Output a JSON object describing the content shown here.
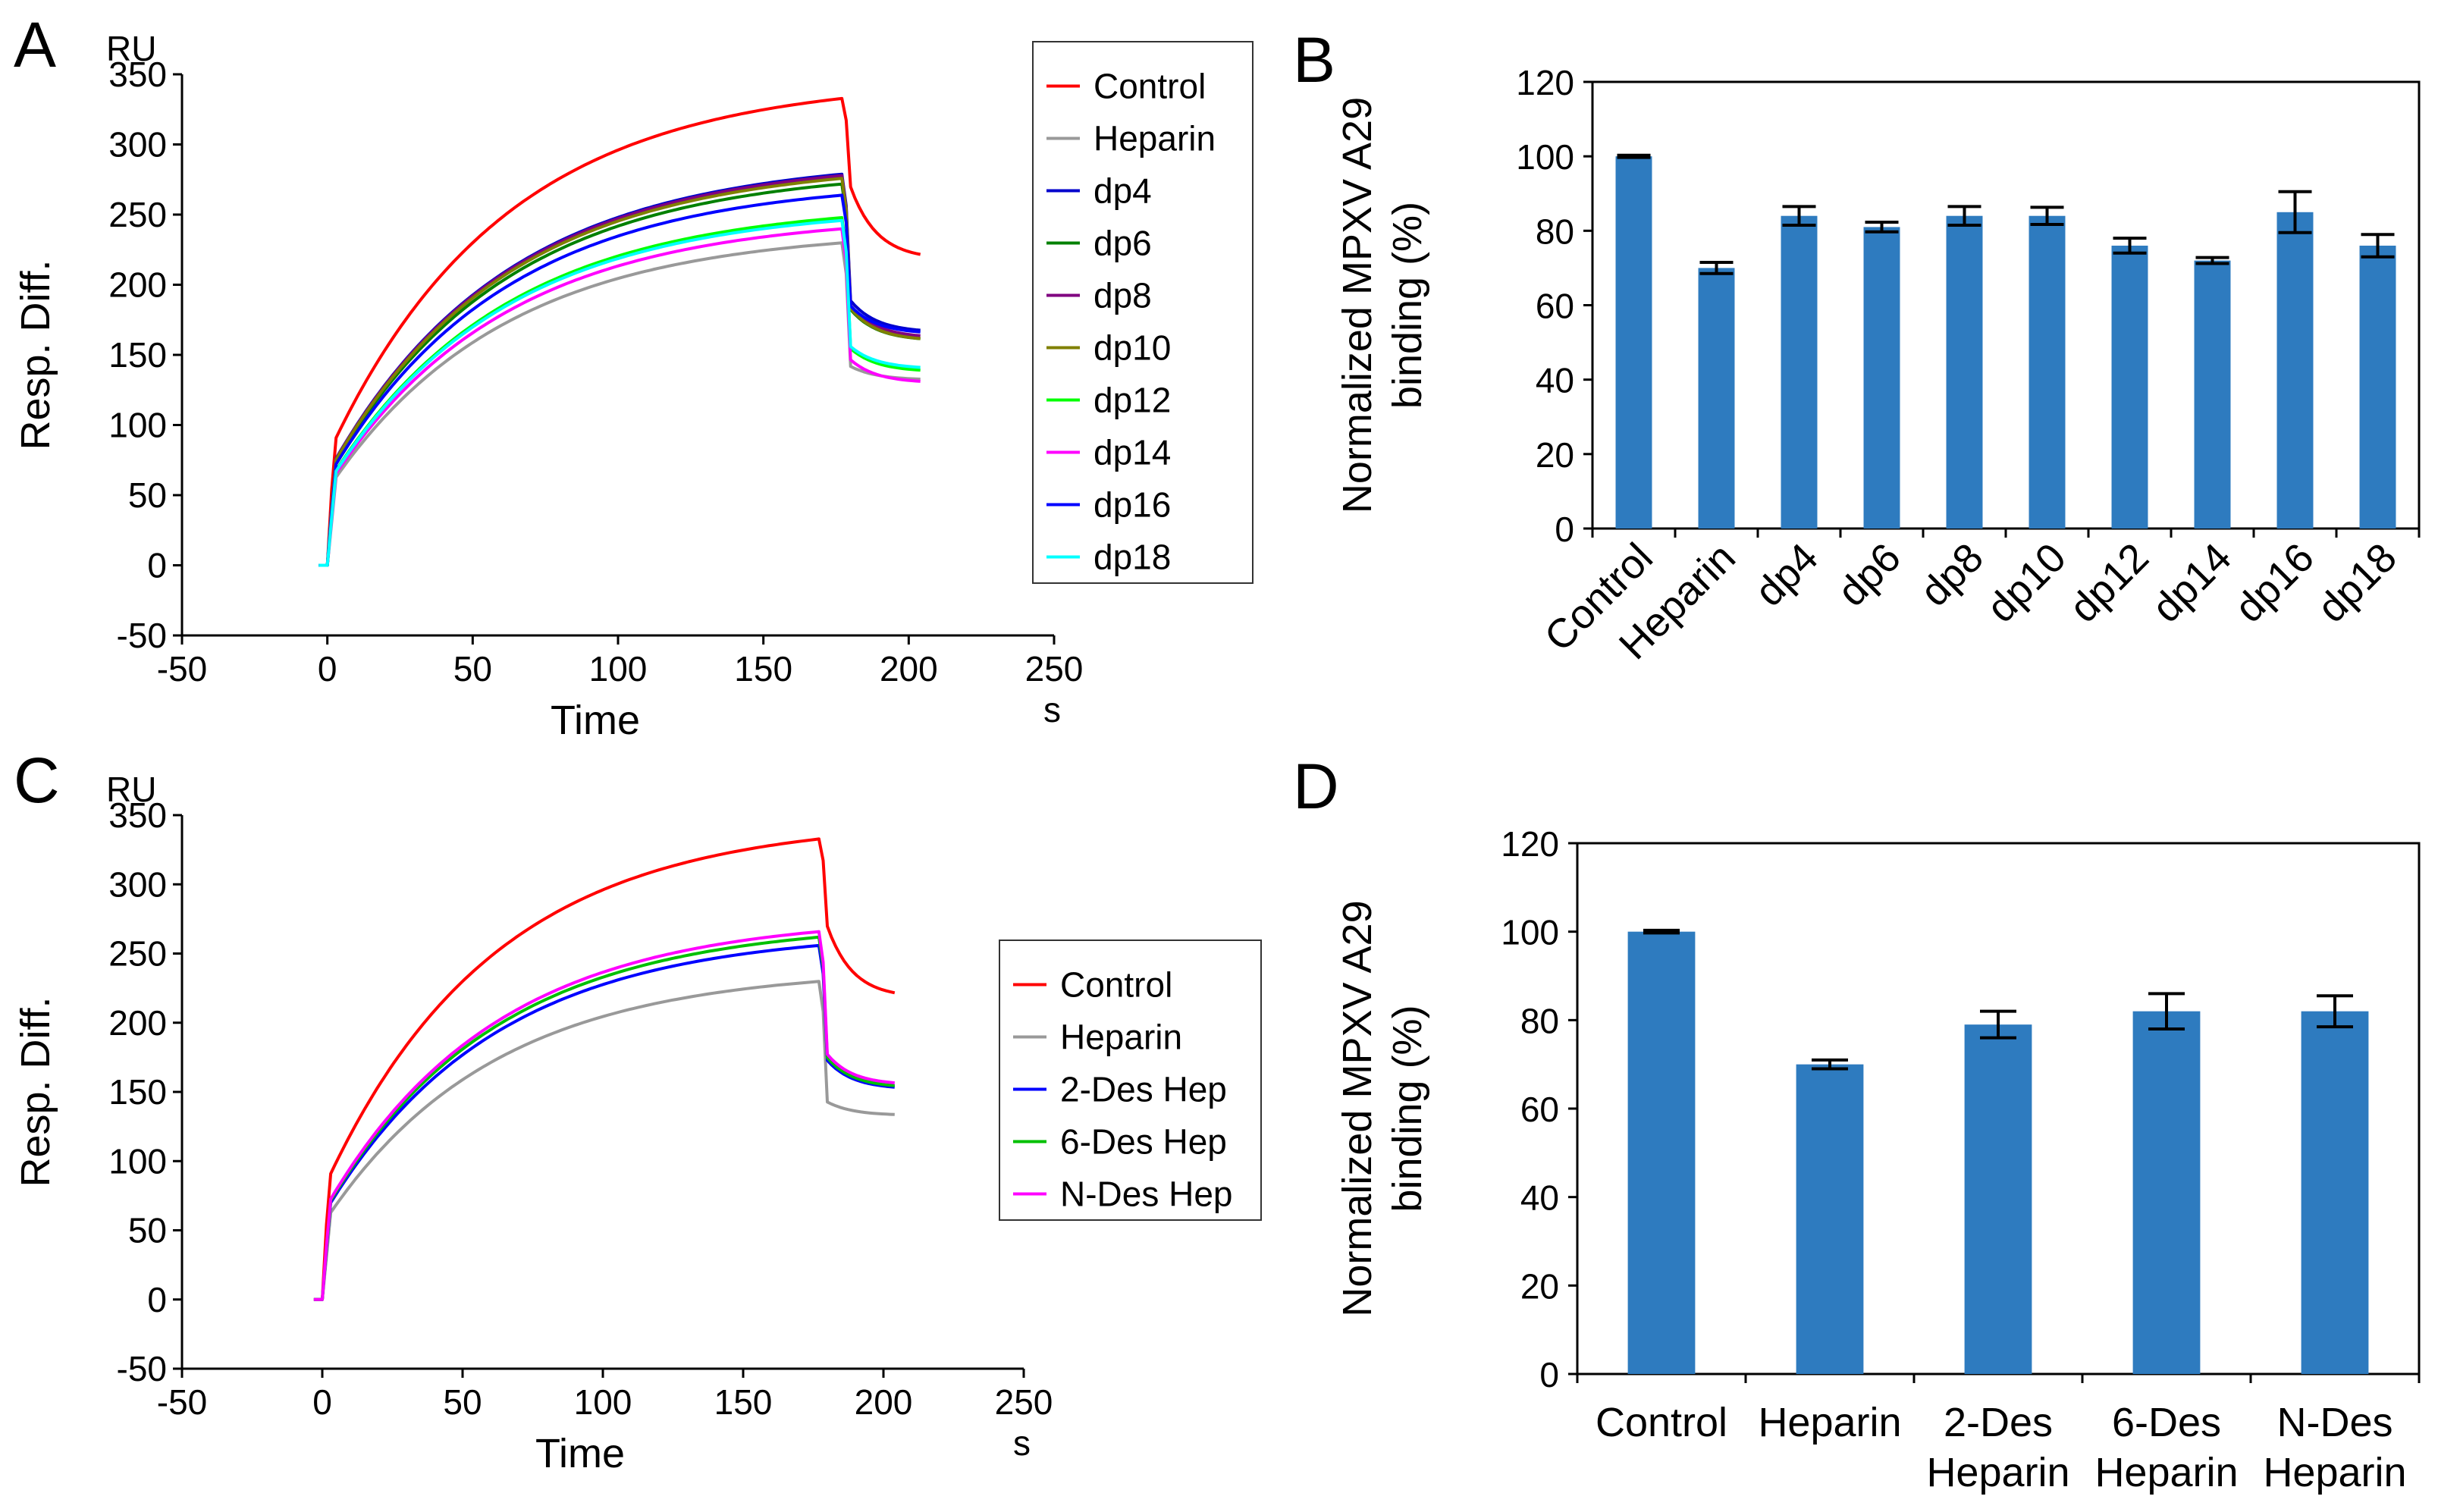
{
  "figure": {
    "panels": [
      "A",
      "B",
      "C",
      "D"
    ]
  },
  "chart_data": [
    {
      "panel": "A",
      "type": "line",
      "ylabel": "Resp. Diff.",
      "yunit": "RU",
      "xlabel": "Time",
      "xunit": "s",
      "xlim": [
        -50,
        250
      ],
      "ylim": [
        -50,
        350
      ],
      "xticks": [
        "-50",
        "0",
        "50",
        "100",
        "150",
        "200",
        "250"
      ],
      "yticks": [
        "-50",
        "0",
        "50",
        "100",
        "150",
        "200",
        "250",
        "300",
        "350"
      ],
      "series": [
        {
          "name": "Control",
          "color": "#ff0000",
          "plateau": 333,
          "end": 218,
          "drop": 0.55
        },
        {
          "name": "Heparin",
          "color": "#999999",
          "plateau": 230,
          "end": 132,
          "drop": 0.9
        },
        {
          "name": "dp4",
          "color": "#0000cc",
          "plateau": 279,
          "end": 166,
          "drop": 0.8
        },
        {
          "name": "dp6",
          "color": "#008000",
          "plateau": 272,
          "end": 160,
          "drop": 0.8
        },
        {
          "name": "dp8",
          "color": "#800080",
          "plateau": 278,
          "end": 162,
          "drop": 0.8
        },
        {
          "name": "dp10",
          "color": "#808000",
          "plateau": 276,
          "end": 160,
          "drop": 0.8
        },
        {
          "name": "dp12",
          "color": "#00ff00",
          "plateau": 248,
          "end": 138,
          "drop": 0.85
        },
        {
          "name": "dp14",
          "color": "#ff00ff",
          "plateau": 240,
          "end": 130,
          "drop": 0.85
        },
        {
          "name": "dp16",
          "color": "#0000ff",
          "plateau": 264,
          "end": 165,
          "drop": 0.8
        },
        {
          "name": "dp18",
          "color": "#00ffff",
          "plateau": 246,
          "end": 140,
          "drop": 0.85
        }
      ]
    },
    {
      "panel": "B",
      "type": "bar",
      "ylabel": "Normalized MPXV A29 binding (%)",
      "ylabel_lines": [
        "Normalized MPXV A29",
        "binding (%)"
      ],
      "ylim": [
        0,
        120
      ],
      "yticks": [
        "0",
        "20",
        "40",
        "60",
        "80",
        "100",
        "120"
      ],
      "color": "#2e7bbf",
      "categories": [
        "Control",
        "Heparin",
        "dp4",
        "dp6",
        "dp8",
        "dp10",
        "dp12",
        "dp14",
        "dp16",
        "dp18"
      ],
      "values": [
        100,
        70,
        84,
        81,
        84,
        84,
        76,
        72,
        85,
        76
      ],
      "errors": [
        0.3,
        1.5,
        2.5,
        1.3,
        2.5,
        2.3,
        2.0,
        0.8,
        5.5,
        3.0
      ]
    },
    {
      "panel": "C",
      "type": "line",
      "ylabel": "Resp. Diff.",
      "yunit": "RU",
      "xlabel": "Time",
      "xunit": "s",
      "xlim": [
        -50,
        250
      ],
      "ylim": [
        -50,
        350
      ],
      "xticks": [
        "-50",
        "0",
        "50",
        "100",
        "150",
        "200",
        "250"
      ],
      "yticks": [
        "-50",
        "0",
        "50",
        "100",
        "150",
        "200",
        "250",
        "300",
        "350"
      ],
      "series": [
        {
          "name": "Control",
          "color": "#ff0000",
          "plateau": 333,
          "end": 218,
          "drop": 0.55
        },
        {
          "name": "Heparin",
          "color": "#999999",
          "plateau": 230,
          "end": 133,
          "drop": 0.9
        },
        {
          "name": "2-Des Hep",
          "color": "#0000ff",
          "plateau": 256,
          "end": 152,
          "drop": 0.8
        },
        {
          "name": "6-Des Hep",
          "color": "#00c000",
          "plateau": 262,
          "end": 153,
          "drop": 0.8
        },
        {
          "name": "N-Des Hep",
          "color": "#ff00ff",
          "plateau": 266,
          "end": 155,
          "drop": 0.8
        }
      ]
    },
    {
      "panel": "D",
      "type": "bar",
      "ylabel": "Normalized MPXV A29 binding (%)",
      "ylabel_lines": [
        "Normalized MPXV A29",
        "binding (%)"
      ],
      "ylim": [
        0,
        120
      ],
      "yticks": [
        "0",
        "20",
        "40",
        "60",
        "80",
        "100",
        "120"
      ],
      "color": "#2e7bbf",
      "categories": [
        "Control",
        "Heparin",
        "2-Des Heparin",
        "6-Des Heparin",
        "N-Des Heparin"
      ],
      "category_lines": [
        [
          "Control"
        ],
        [
          "Heparin"
        ],
        [
          "2-Des",
          "Heparin"
        ],
        [
          "6-Des",
          "Heparin"
        ],
        [
          "N-Des",
          "Heparin"
        ]
      ],
      "values": [
        100,
        70,
        79,
        82,
        82
      ],
      "errors": [
        0.3,
        1.0,
        3.0,
        4.0,
        3.5
      ]
    }
  ]
}
